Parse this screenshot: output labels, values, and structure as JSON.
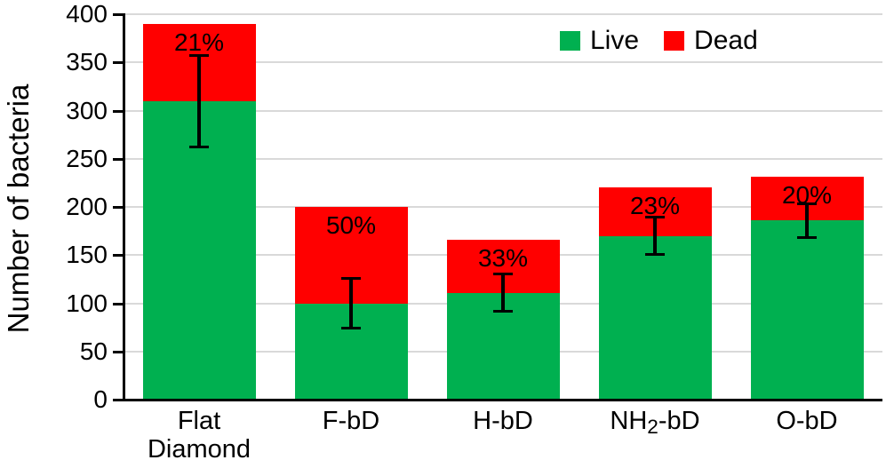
{
  "chart_data": {
    "type": "bar",
    "stacked": true,
    "title": "",
    "xlabel": "",
    "ylabel": "Number of bacteria",
    "ylim": [
      0,
      400
    ],
    "yticks": [
      0,
      50,
      100,
      150,
      200,
      250,
      300,
      350,
      400
    ],
    "grid": "horizontal",
    "legend": {
      "position": "top-right-inside",
      "entries": [
        "Live",
        "Dead"
      ]
    },
    "categories": [
      {
        "name": "Flat Diamond",
        "lines": [
          [
            {
              "t": "Flat"
            }
          ],
          [
            {
              "t": "Diamond"
            }
          ]
        ]
      },
      {
        "name": "F-bD",
        "lines": [
          [
            {
              "t": "F-bD"
            }
          ]
        ]
      },
      {
        "name": "H-bD",
        "lines": [
          [
            {
              "t": "H-bD"
            }
          ]
        ]
      },
      {
        "name": "NH2-bD",
        "lines": [
          [
            {
              "t": "NH"
            },
            {
              "t": "2",
              "sub": true
            },
            {
              "t": "-bD"
            }
          ]
        ]
      },
      {
        "name": "O-bD",
        "lines": [
          [
            {
              "t": "O-bD"
            }
          ]
        ]
      }
    ],
    "series": [
      {
        "name": "Live",
        "color": "#00B050",
        "values": [
          310,
          100,
          111,
          170,
          186
        ],
        "error_bars": [
          48,
          26,
          20,
          20,
          18
        ]
      },
      {
        "name": "Dead",
        "color": "#FF0000",
        "values": [
          80,
          100,
          55,
          50,
          45
        ]
      }
    ],
    "totals": [
      390,
      200,
      166,
      220,
      231
    ],
    "bar_labels": {
      "describes": "dead-percent-of-total",
      "values": [
        "21%",
        "50%",
        "33%",
        "23%",
        "20%"
      ]
    },
    "colors": {
      "grid": "#d9d9d9",
      "axis": "#000000",
      "text": "#000000",
      "error_bar": "#000000",
      "background": "#ffffff"
    }
  }
}
